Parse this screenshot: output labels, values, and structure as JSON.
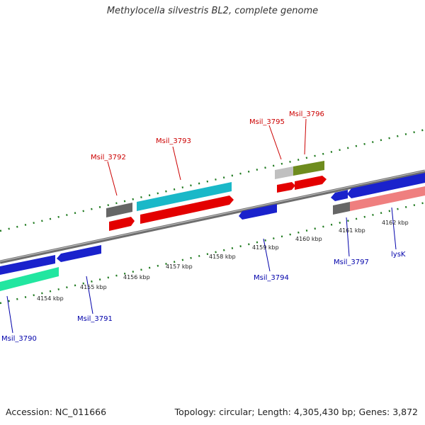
{
  "title": "Methylocella silvestris BL2, complete genome",
  "accession": "Accession: NC_011666",
  "topology": "Topology: circular; Length: 4,305,430 bp; Genes: 3,872",
  "colors": {
    "backbone": "#808080",
    "tick": "#1f7a1f",
    "label_forward": "#cc0000",
    "label_reverse": "#0000aa"
  },
  "kbp_labels": [
    "4154 kbp",
    "4155 kbp",
    "4156 kbp",
    "4157 kbp",
    "4158 kbp",
    "4159 kbp",
    "4160 kbp",
    "4161 kbp",
    "4162 kbp"
  ],
  "gene_labels_forward": [
    "Msil_3792",
    "Msil_3793",
    "Msil_3795",
    "Msil_3796"
  ],
  "gene_labels_reverse": [
    "Msil_3790",
    "Msil_3791",
    "Msil_3794",
    "Msil_3797",
    "lysK"
  ]
}
